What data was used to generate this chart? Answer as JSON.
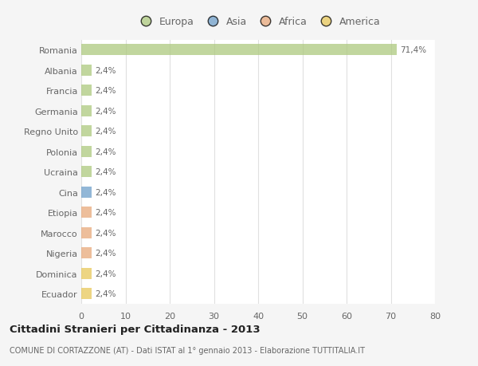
{
  "categories": [
    "Romania",
    "Albania",
    "Francia",
    "Germania",
    "Regno Unito",
    "Polonia",
    "Ucraina",
    "Cina",
    "Etiopia",
    "Marocco",
    "Nigeria",
    "Dominica",
    "Ecuador"
  ],
  "values": [
    71.4,
    2.4,
    2.4,
    2.4,
    2.4,
    2.4,
    2.4,
    2.4,
    2.4,
    2.4,
    2.4,
    2.4,
    2.4
  ],
  "labels": [
    "71,4%",
    "2,4%",
    "2,4%",
    "2,4%",
    "2,4%",
    "2,4%",
    "2,4%",
    "2,4%",
    "2,4%",
    "2,4%",
    "2,4%",
    "2,4%",
    "2,4%"
  ],
  "bar_colors": [
    "#adc97e",
    "#adc97e",
    "#adc97e",
    "#adc97e",
    "#adc97e",
    "#adc97e",
    "#adc97e",
    "#6e9fca",
    "#e8a87a",
    "#e8a87a",
    "#e8a87a",
    "#e8c85a",
    "#e8c85a"
  ],
  "legend_labels": [
    "Europa",
    "Asia",
    "Africa",
    "America"
  ],
  "legend_colors": [
    "#adc97e",
    "#6e9fca",
    "#e8a87a",
    "#e8c85a"
  ],
  "title": "Cittadini Stranieri per Cittadinanza - 2013",
  "subtitle": "COMUNE DI CORTAZZONE (AT) - Dati ISTAT al 1° gennaio 2013 - Elaborazione TUTTITALIA.IT",
  "xlim": [
    0,
    80
  ],
  "xticks": [
    0,
    10,
    20,
    30,
    40,
    50,
    60,
    70,
    80
  ],
  "background_color": "#f5f5f5",
  "plot_bg_color": "#ffffff",
  "grid_color": "#e0e0e0",
  "text_color": "#666666",
  "title_color": "#222222",
  "subtitle_color": "#666666",
  "bar_alpha": 0.75
}
